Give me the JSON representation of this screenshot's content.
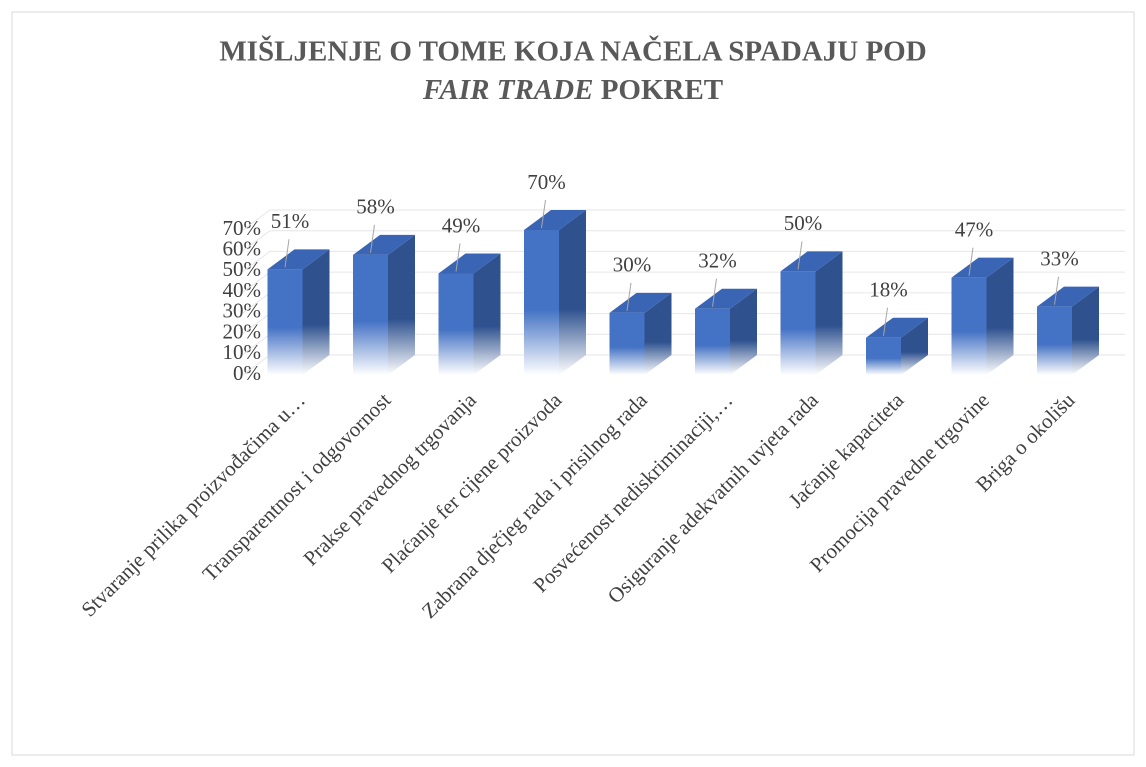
{
  "chart_data": {
    "type": "bar3d",
    "title": [
      "MIŠLJENJE O TOME KOJA NAČELA SPADAJU POD",
      "FAIR TRADE",
      "POKRET"
    ],
    "categories": [
      "Stvaranje prilika proizvođačima u…",
      "Transparentnost i odgovornost",
      "Prakse pravednog trgovanja",
      "Plaćanje fer cijene proizvoda",
      "Zabrana dječjeg rada i prisilnog rada",
      "Posvećenost nediskriminaciji,…",
      "Osiguranje adekvatnih uvjeta rada",
      "Jačanje kapaciteta",
      "Promocija pravedne trgovine",
      "Briga o okolišu"
    ],
    "values": [
      51,
      58,
      49,
      70,
      30,
      32,
      50,
      18,
      47,
      33
    ],
    "value_labels": [
      "51%",
      "58%",
      "49%",
      "70%",
      "30%",
      "32%",
      "50%",
      "18%",
      "47%",
      "33%"
    ],
    "color": "#4472c4",
    "ylim": [
      0,
      70
    ],
    "yticks": [
      {
        "value": 0,
        "label": "0%"
      },
      {
        "value": 10,
        "label": "10%"
      },
      {
        "value": 20,
        "label": "20%"
      },
      {
        "value": 30,
        "label": "30%"
      },
      {
        "value": 40,
        "label": "40%"
      },
      {
        "value": 50,
        "label": "50%"
      },
      {
        "value": 60,
        "label": "60%"
      },
      {
        "value": 70,
        "label": "70%"
      }
    ],
    "grid": true
  }
}
